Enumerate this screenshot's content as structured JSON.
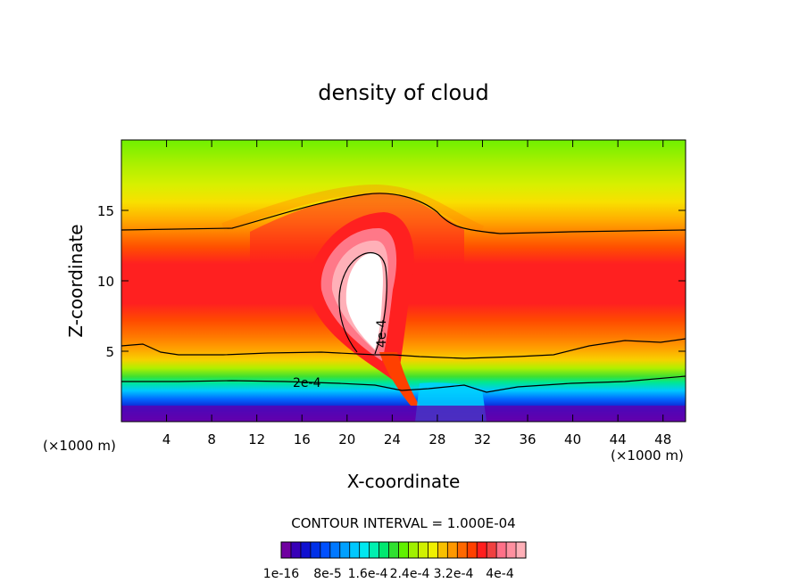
{
  "chart_data": {
    "type": "heatmap",
    "title": "density of cloud",
    "xlabel": "X-coordinate",
    "ylabel": "Z-coordinate",
    "x_unit_label": "(×1000 m)",
    "x_unit_label_right": "(×1000 m)",
    "xlim": [
      0,
      50
    ],
    "ylim": [
      0,
      20
    ],
    "xticks": [
      4,
      8,
      12,
      16,
      20,
      24,
      28,
      32,
      36,
      40,
      44,
      48
    ],
    "yticks": [
      5,
      10,
      15
    ],
    "contour_interval_text": "CONTOUR INTERVAL = 1.000E-04",
    "colorbar_labels": [
      "1e-16",
      "8e-5",
      "1.6e-4",
      "2.4e-4",
      "3.2e-4",
      "4e-4"
    ],
    "colorbar_colors": [
      "#7000a0",
      "#3800b8",
      "#1010d0",
      "#0030e8",
      "#0050ff",
      "#0078ff",
      "#00a0ff",
      "#00c8ff",
      "#00e8f0",
      "#00f0b0",
      "#00e870",
      "#30e030",
      "#60f000",
      "#a0f000",
      "#d0f000",
      "#f0f000",
      "#f8c000",
      "#ff9800",
      "#ff6800",
      "#ff4000",
      "#ff1e1e",
      "#f04040",
      "#ff7088",
      "#ff90a0",
      "#ffb0b8"
    ],
    "contour_labels": [
      {
        "text": "2e-4",
        "value": 0.0002
      },
      {
        "text": "4e-4",
        "value": 0.0004
      }
    ],
    "layers": [
      {
        "z": [
          0,
          0.8
        ],
        "value_range": "1e-16 - 8e-5",
        "color": "#6a00a8"
      },
      {
        "z": [
          0.8,
          1.6
        ],
        "color": "#2040ff"
      },
      {
        "z": [
          1.6,
          2.4
        ],
        "color": "#00e0ff"
      },
      {
        "z": [
          2.4,
          3.2
        ],
        "color": "#30e030"
      },
      {
        "z": [
          3.2,
          4.0
        ],
        "color": "#d0f000"
      },
      {
        "z": [
          4.0,
          5.5
        ],
        "color": "#ff9800"
      },
      {
        "z": [
          5.5,
          7.5
        ],
        "color": "#ff5a00"
      },
      {
        "z": [
          7.5,
          12
        ],
        "color": "#ff2020"
      },
      {
        "z": [
          12,
          13.5
        ],
        "color": "#ff6000"
      },
      {
        "z": [
          13.5,
          16
        ],
        "color": "#ffb000"
      },
      {
        "z": [
          16,
          18
        ],
        "color": "#d0f000"
      },
      {
        "z": [
          18,
          20
        ],
        "color": "#70f000"
      }
    ],
    "peak_region": {
      "x_center": 22,
      "z_center": 9,
      "value": 0.0004,
      "color": "#ffffff"
    },
    "grid": false,
    "legend_position": "bottom"
  }
}
